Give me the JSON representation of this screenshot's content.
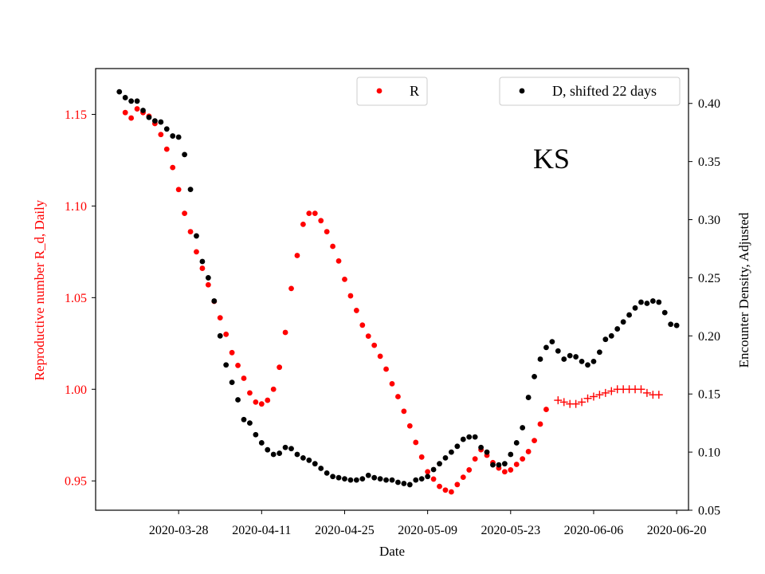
{
  "chart_data": {
    "type": "scatter",
    "xlabel": "Date",
    "ylabel_left": "Reproductive number R_d, Daily",
    "ylabel_right": "Encounter Density, Adjusted",
    "annotation": "KS",
    "x_domain": [
      "2020-03-14",
      "2020-06-22"
    ],
    "ylim_left": [
      0.934,
      1.175
    ],
    "ylim_right": [
      0.05,
      0.43
    ],
    "x_ticks": [
      "2020-03-28",
      "2020-04-11",
      "2020-04-25",
      "2020-05-09",
      "2020-05-23",
      "2020-06-06",
      "2020-06-20"
    ],
    "y_ticks_left": [
      "0.95",
      "1.00",
      "1.05",
      "1.10",
      "1.15"
    ],
    "y_ticks_right": [
      "0.05",
      "0.10",
      "0.15",
      "0.20",
      "0.25",
      "0.30",
      "0.35",
      "0.40"
    ],
    "legend_left": {
      "label": "R",
      "position": "upper-center"
    },
    "legend_right": {
      "label": "D, shifted 22 days",
      "position": "upper-right"
    },
    "colors": {
      "R": "#ff0000",
      "D": "#000000",
      "left_axis": "#ff0000",
      "right_axis": "#000000"
    },
    "series": [
      {
        "name": "R",
        "axis": "left",
        "marker": "dot",
        "start": "2020-03-19",
        "values": [
          1.151,
          1.148,
          1.153,
          1.151,
          1.149,
          1.145,
          1.139,
          1.131,
          1.121,
          1.109,
          1.096,
          1.086,
          1.075,
          1.066,
          1.057,
          1.048,
          1.039,
          1.03,
          1.02,
          1.013,
          1.006,
          0.998,
          0.993,
          0.992,
          0.994,
          1.0,
          1.012,
          1.031,
          1.055,
          1.073,
          1.09,
          1.096,
          1.096,
          1.092,
          1.086,
          1.078,
          1.07,
          1.06,
          1.051,
          1.043,
          1.035,
          1.029,
          1.024,
          1.018,
          1.011,
          1.003,
          0.996,
          0.988,
          0.98,
          0.971,
          0.963,
          0.955,
          0.951,
          0.947,
          0.945,
          0.944,
          0.948,
          0.952,
          0.956,
          0.962,
          0.967,
          0.964,
          0.96,
          0.957,
          0.955,
          0.956,
          0.959,
          0.962,
          0.966,
          0.972,
          0.981,
          0.989
        ]
      },
      {
        "name": "R",
        "axis": "left",
        "marker": "plus",
        "start": "2020-05-31",
        "values": [
          0.994,
          0.993,
          0.992,
          0.992,
          0.993,
          0.995,
          0.996,
          0.997,
          0.998,
          0.999,
          1.0,
          1.0,
          1.0,
          1.0,
          1.0,
          0.998,
          0.997,
          0.997
        ]
      },
      {
        "name": "D, shifted 22 days",
        "axis": "right",
        "marker": "dot",
        "start": "2020-03-18",
        "values": [
          0.41,
          0.405,
          0.402,
          0.402,
          0.394,
          0.388,
          0.385,
          0.384,
          0.378,
          0.372,
          0.371,
          0.356,
          0.326,
          0.286,
          0.264,
          0.25,
          0.23,
          0.2,
          0.175,
          0.16,
          0.145,
          0.128,
          0.125,
          0.115,
          0.108,
          0.102,
          0.098,
          0.099,
          0.104,
          0.103,
          0.098,
          0.095,
          0.093,
          0.09,
          0.086,
          0.082,
          0.079,
          0.078,
          0.077,
          0.076,
          0.076,
          0.077,
          0.08,
          0.078,
          0.077,
          0.076,
          0.076,
          0.074,
          0.073,
          0.072,
          0.076,
          0.077,
          0.079,
          0.085,
          0.09,
          0.095,
          0.1,
          0.105,
          0.111,
          0.113,
          0.113,
          0.104,
          0.1,
          0.089,
          0.089,
          0.09,
          0.098,
          0.108,
          0.121,
          0.147,
          0.165,
          0.18,
          0.19,
          0.195,
          0.187,
          0.18,
          0.183,
          0.182,
          0.178,
          0.175,
          0.178,
          0.186,
          0.197,
          0.2,
          0.206,
          0.212,
          0.218,
          0.224,
          0.229,
          0.228,
          0.23,
          0.229,
          0.22,
          0.21,
          0.209
        ]
      }
    ]
  }
}
